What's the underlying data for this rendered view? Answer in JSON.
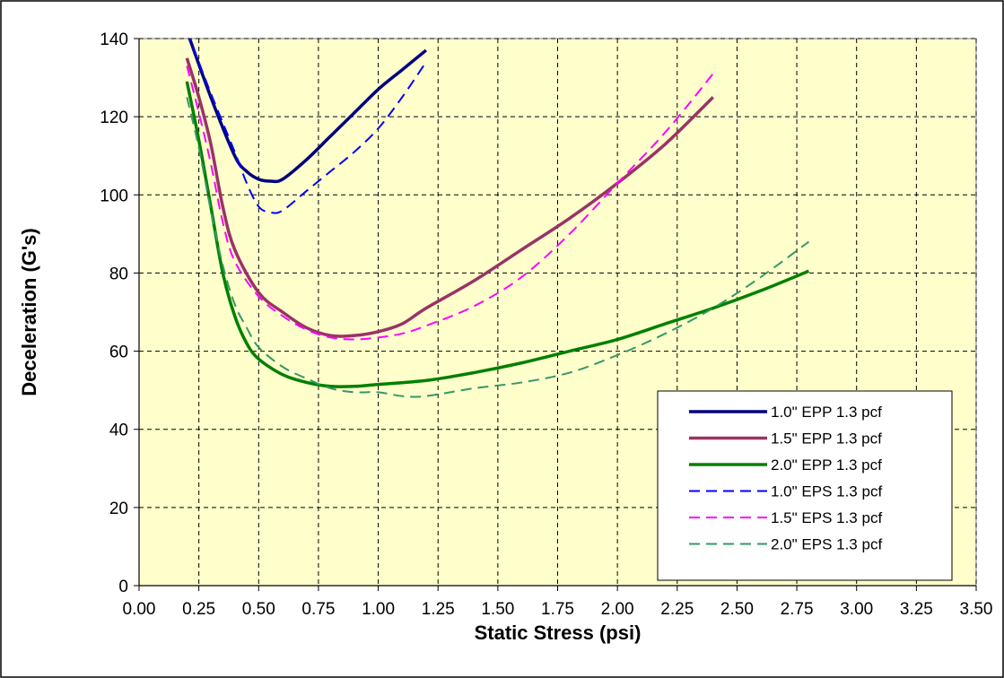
{
  "chart_data": {
    "type": "line",
    "xlabel": "Static Stress (psi)",
    "ylabel": "Deceleration (G's)",
    "xlim": [
      0,
      3.5
    ],
    "ylim": [
      0,
      140
    ],
    "x_ticks": [
      "0.00",
      "0.25",
      "0.50",
      "0.75",
      "1.00",
      "1.25",
      "1.50",
      "1.75",
      "2.00",
      "2.25",
      "2.50",
      "2.75",
      "3.00",
      "3.25",
      "3.50"
    ],
    "y_ticks": [
      "0",
      "20",
      "40",
      "60",
      "80",
      "100",
      "120",
      "140"
    ],
    "grid": true,
    "legend_position": "bottom-right",
    "series": [
      {
        "name": "1.0\" EPP 1.3 pcf",
        "color": "#000080",
        "dash": "solid",
        "x": [
          0.2,
          0.3,
          0.4,
          0.45,
          0.5,
          0.55,
          0.6,
          0.7,
          0.8,
          0.9,
          1.0,
          1.1,
          1.2
        ],
        "y": [
          142,
          125,
          110,
          106,
          104,
          103.5,
          104,
          109,
          115,
          121,
          127,
          132,
          137
        ]
      },
      {
        "name": "1.5\" EPP 1.3 pcf",
        "color": "#993366",
        "dash": "solid",
        "x": [
          0.2,
          0.25,
          0.3,
          0.35,
          0.4,
          0.5,
          0.6,
          0.7,
          0.8,
          0.9,
          1.0,
          1.1,
          1.2,
          1.4,
          1.6,
          1.8,
          2.0,
          2.2,
          2.4
        ],
        "y": [
          135,
          125,
          113,
          97,
          86,
          75,
          70,
          66,
          64,
          64,
          65,
          67,
          71,
          78,
          86,
          94,
          103,
          113,
          125
        ]
      },
      {
        "name": "2.0\" EPP 1.3 pcf",
        "color": "#008000",
        "dash": "solid",
        "x": [
          0.2,
          0.25,
          0.3,
          0.35,
          0.4,
          0.45,
          0.5,
          0.6,
          0.7,
          0.8,
          0.9,
          1.0,
          1.2,
          1.4,
          1.6,
          1.8,
          2.0,
          2.2,
          2.4,
          2.6,
          2.8
        ],
        "y": [
          129,
          114,
          97,
          80,
          69,
          62,
          58,
          54,
          52,
          51,
          51,
          51.5,
          52.5,
          54.5,
          57,
          60,
          63,
          67,
          71,
          75.5,
          80.5
        ]
      },
      {
        "name": "1.0\" EPS 1.3 pcf",
        "color": "#0000FF",
        "dash": "dashed",
        "x": [
          0.2,
          0.3,
          0.4,
          0.45,
          0.5,
          0.55,
          0.6,
          0.7,
          0.8,
          0.9,
          1.0,
          1.1,
          1.2
        ],
        "y": [
          142,
          126,
          111,
          103,
          97,
          95.5,
          96,
          101,
          106,
          111,
          117,
          125,
          134
        ]
      },
      {
        "name": "1.5\" EPS 1.3 pcf",
        "color": "#FF00FF",
        "dash": "dashed",
        "x": [
          0.2,
          0.25,
          0.3,
          0.35,
          0.4,
          0.5,
          0.6,
          0.7,
          0.8,
          0.9,
          1.0,
          1.1,
          1.2,
          1.4,
          1.6,
          1.8,
          2.0,
          2.2,
          2.4
        ],
        "y": [
          133,
          121,
          108,
          93,
          83,
          74,
          69,
          65.5,
          63.5,
          63,
          63.5,
          64.5,
          66.5,
          71.5,
          79,
          90,
          103,
          116,
          131
        ]
      },
      {
        "name": "2.0\" EPS 1.3 pcf",
        "color": "#339966",
        "dash": "dashed",
        "x": [
          0.2,
          0.25,
          0.3,
          0.35,
          0.4,
          0.45,
          0.5,
          0.6,
          0.7,
          0.8,
          0.9,
          1.0,
          1.1,
          1.2,
          1.4,
          1.6,
          1.8,
          2.0,
          2.2,
          2.4,
          2.6,
          2.8
        ],
        "y": [
          125,
          112,
          96,
          82,
          72,
          66,
          61,
          56,
          53,
          50.5,
          49.5,
          49.5,
          48.5,
          48.5,
          50.5,
          52,
          54.5,
          59,
          64.5,
          71,
          79,
          88
        ]
      }
    ]
  }
}
